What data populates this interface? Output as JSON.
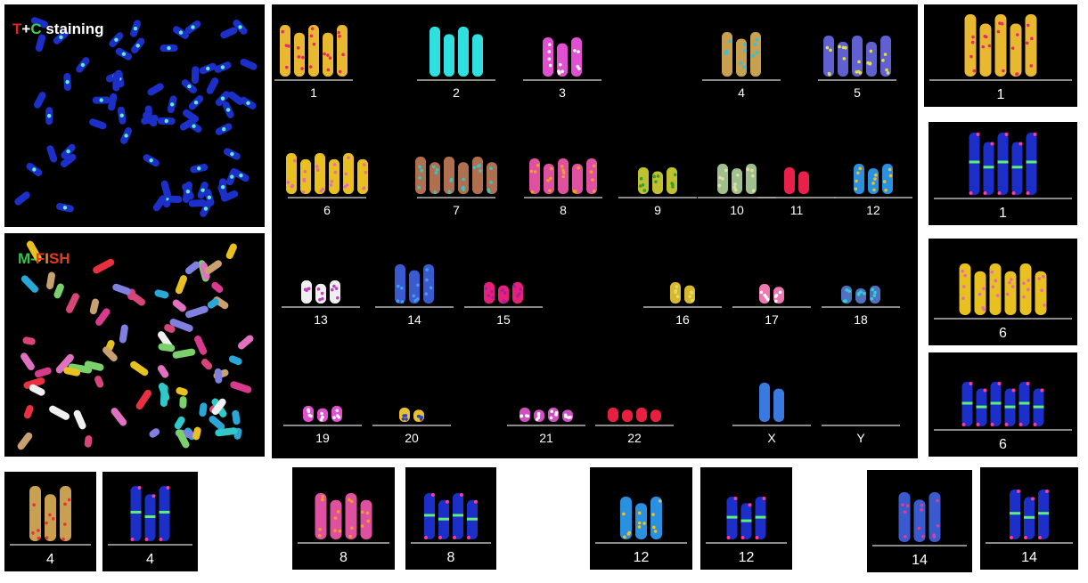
{
  "panels": {
    "tc_label": [
      "T",
      "+",
      "C",
      " staining"
    ],
    "mfish_label": [
      "M",
      "-",
      "F",
      "I",
      "S",
      "H"
    ],
    "karyotype": [
      "1",
      "2",
      "3",
      "4",
      "5",
      "6",
      "7",
      "8",
      "9",
      "10",
      "11",
      "12",
      "13",
      "14",
      "15",
      "16",
      "17",
      "18",
      "19",
      "20",
      "21",
      "22",
      "X",
      "Y"
    ],
    "side": [
      "1",
      "1",
      "6",
      "6"
    ],
    "bottom": [
      "4",
      "4",
      "8",
      "8",
      "12",
      "12",
      "14",
      "14"
    ]
  }
}
